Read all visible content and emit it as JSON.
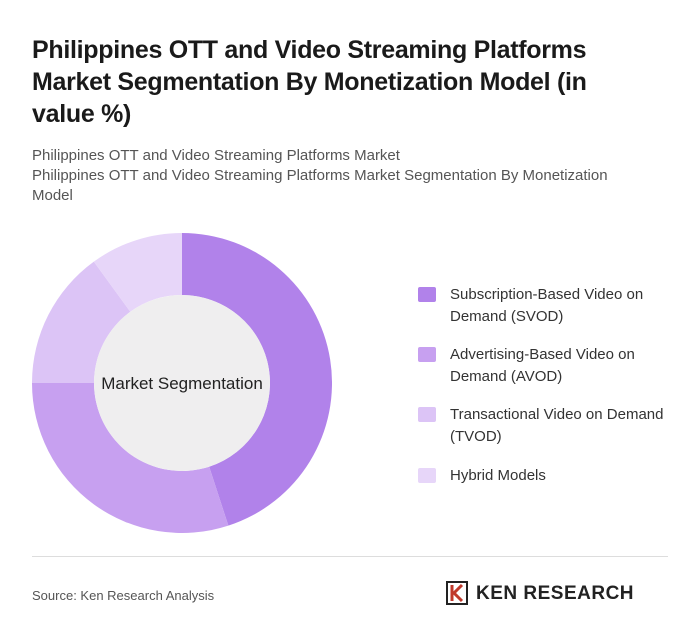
{
  "chart_data": {
    "type": "donut",
    "title": "Philippines OTT and Video Streaming Platforms Market Segmentation By Monetization Model (in value %)",
    "subtitles": [
      "Philippines OTT and Video Streaming Platforms Market",
      "Philippines OTT and Video Streaming Platforms Market Segmentation By Monetization Model"
    ],
    "center_label": "Market Segmentation",
    "categories": [
      "Subscription-Based Video on Demand (SVOD)",
      "Advertising-Based Video on Demand (AVOD)",
      "Transactional Video on Demand (TVOD)",
      "Hybrid Models"
    ],
    "values": [
      45,
      30,
      15,
      10
    ],
    "colors": [
      "#b182ea",
      "#c7a0f0",
      "#dcc4f6",
      "#e7d6f9"
    ],
    "source": "Source: Ken Research Analysis",
    "brand": "KEN RESEARCH"
  }
}
